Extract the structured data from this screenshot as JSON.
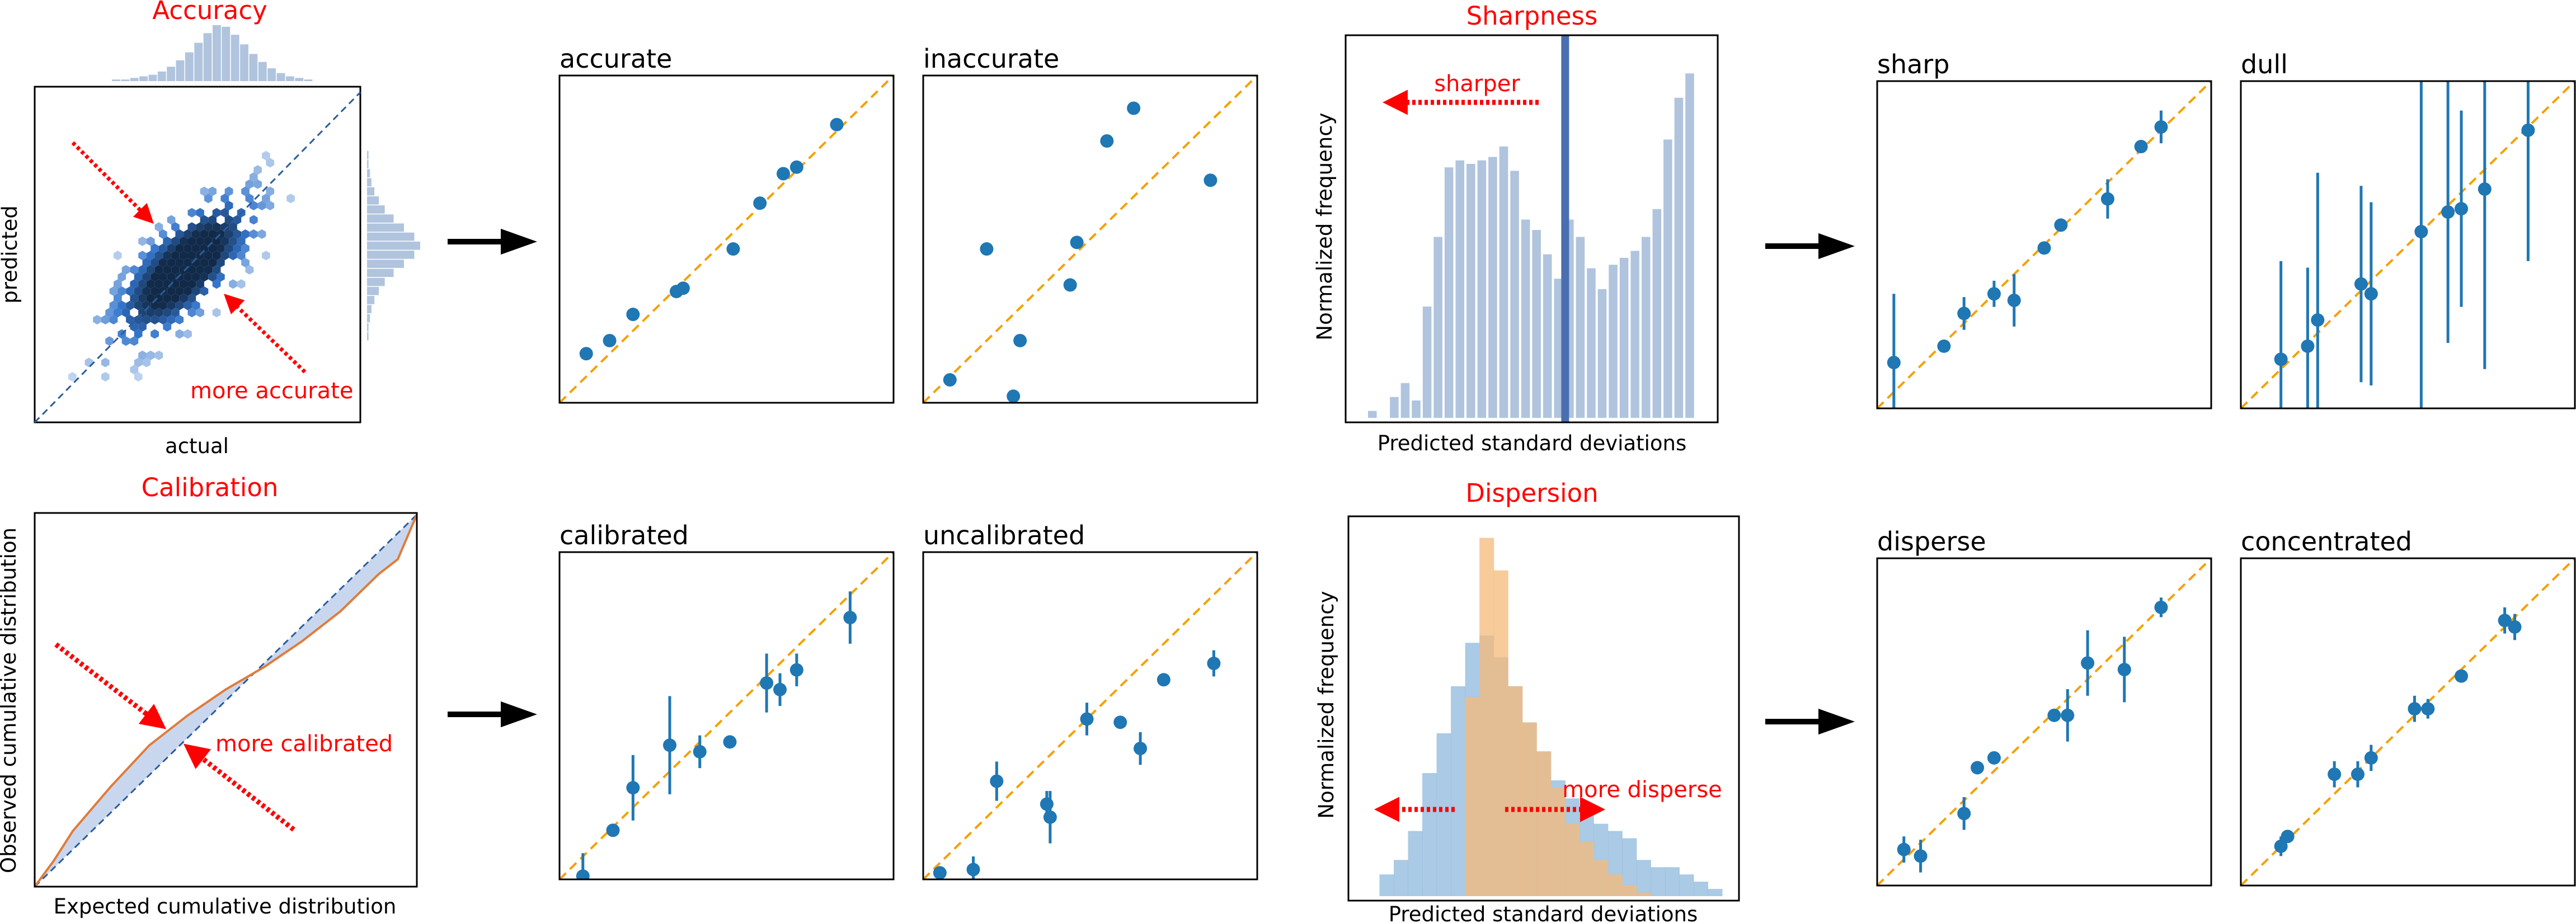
{
  "titles": {
    "accuracy": "Accuracy",
    "sharpness": "Sharpness",
    "calibration": "Calibration",
    "dispersion": "Dispersion"
  },
  "annotations": {
    "more_accurate": "more accurate",
    "sharper": "sharper",
    "more_calibrated": "more calibrated",
    "more_disperse": "more disperse"
  },
  "colors": {
    "highlight": "#ff0000",
    "point": "#1f77b4",
    "identity": "#f5a000",
    "hist": "#b0c4de",
    "hist_secondary": "#f5b97a",
    "hist_primary": "#8db8dc",
    "calib_curve": "#e07b39",
    "diag_blue": "#2b5d9c"
  },
  "chart_data": [
    {
      "id": "accuracy-hexbin",
      "type": "scatter",
      "title": "Accuracy",
      "xlabel": "actual",
      "ylabel": "predicted",
      "annotation": "more accurate",
      "density_note": "hexbin joint density concentrated along the identity line with marginal histograms",
      "marginal_x": [
        1,
        1,
        2,
        3,
        4,
        6,
        9,
        13,
        18,
        24,
        30,
        35,
        34,
        29,
        23,
        17,
        12,
        8,
        5,
        3,
        2,
        1
      ],
      "marginal_y": [
        1,
        1,
        2,
        3,
        5,
        8,
        12,
        18,
        25,
        32,
        36,
        32,
        25,
        18,
        12,
        8,
        5,
        3,
        2,
        1,
        1
      ]
    },
    {
      "id": "accurate",
      "type": "scatter",
      "title": "accurate",
      "x": [
        0.08,
        0.15,
        0.22,
        0.35,
        0.37,
        0.52,
        0.6,
        0.67,
        0.71,
        0.83
      ],
      "y": [
        0.15,
        0.19,
        0.27,
        0.34,
        0.35,
        0.47,
        0.61,
        0.7,
        0.72,
        0.85
      ]
    },
    {
      "id": "inaccurate",
      "type": "scatter",
      "title": "inaccurate",
      "x": [
        0.08,
        0.19,
        0.27,
        0.29,
        0.44,
        0.46,
        0.55,
        0.63,
        0.86
      ],
      "y": [
        0.07,
        0.47,
        0.02,
        0.19,
        0.36,
        0.49,
        0.8,
        0.9,
        0.68
      ]
    },
    {
      "id": "sharpness-hist",
      "type": "bar",
      "title": "Sharpness",
      "xlabel": "Predicted standard deviations",
      "ylabel": "Normalized frequency",
      "annotation": "sharper",
      "values": [
        0.02,
        0.0,
        0.06,
        0.1,
        0.05,
        0.32,
        0.52,
        0.72,
        0.74,
        0.73,
        0.74,
        0.75,
        0.78,
        0.71,
        0.57,
        0.54,
        0.47,
        0.4,
        0.57,
        0.52,
        0.43,
        0.37,
        0.44,
        0.46,
        0.48,
        0.52,
        0.6,
        0.8,
        0.92,
        0.99,
        0.0
      ],
      "mean_marker_fraction": 0.59
    },
    {
      "id": "sharp",
      "type": "scatter",
      "title": "sharp",
      "x": [
        0.05,
        0.2,
        0.26,
        0.35,
        0.41,
        0.5,
        0.55,
        0.69,
        0.79,
        0.85
      ],
      "y": [
        0.14,
        0.19,
        0.29,
        0.35,
        0.33,
        0.49,
        0.56,
        0.64,
        0.8,
        0.86
      ],
      "err": [
        0.21,
        0.0,
        0.05,
        0.04,
        0.08,
        0.0,
        0.02,
        0.06,
        0.0,
        0.05
      ]
    },
    {
      "id": "dull",
      "type": "scatter",
      "title": "dull",
      "x": [
        0.12,
        0.2,
        0.23,
        0.36,
        0.39,
        0.54,
        0.62,
        0.66,
        0.73,
        0.86
      ],
      "y": [
        0.15,
        0.19,
        0.27,
        0.38,
        0.35,
        0.54,
        0.6,
        0.61,
        0.67,
        0.85
      ],
      "err": [
        0.3,
        0.24,
        0.45,
        0.3,
        0.28,
        0.55,
        0.4,
        0.3,
        0.55,
        0.4
      ]
    },
    {
      "id": "calibration-curve",
      "type": "line",
      "title": "Calibration",
      "xlabel": "Expected cumulative distribution",
      "ylabel": "Observed cumulative distribution",
      "annotation": "more calibrated",
      "x": [
        0.0,
        0.05,
        0.1,
        0.2,
        0.3,
        0.4,
        0.5,
        0.6,
        0.7,
        0.8,
        0.9,
        0.95,
        1.0
      ],
      "y": [
        0.0,
        0.07,
        0.15,
        0.27,
        0.38,
        0.46,
        0.53,
        0.59,
        0.66,
        0.74,
        0.84,
        0.88,
        1.0
      ]
    },
    {
      "id": "calibrated",
      "type": "scatter",
      "title": "calibrated",
      "x": [
        0.07,
        0.16,
        0.22,
        0.33,
        0.42,
        0.51,
        0.62,
        0.66,
        0.71,
        0.87
      ],
      "y": [
        0.01,
        0.15,
        0.28,
        0.41,
        0.39,
        0.42,
        0.6,
        0.58,
        0.64,
        0.8
      ],
      "err": [
        0.07,
        0.02,
        0.1,
        0.15,
        0.05,
        0.02,
        0.09,
        0.05,
        0.05,
        0.08
      ]
    },
    {
      "id": "uncalibrated",
      "type": "scatter",
      "title": "uncalibrated",
      "x": [
        0.05,
        0.15,
        0.22,
        0.37,
        0.38,
        0.49,
        0.59,
        0.65,
        0.72,
        0.87
      ],
      "y": [
        0.02,
        0.03,
        0.3,
        0.23,
        0.19,
        0.49,
        0.48,
        0.4,
        0.61,
        0.66
      ],
      "err": [
        0.0,
        0.04,
        0.06,
        0.04,
        0.08,
        0.05,
        0.0,
        0.05,
        0.0,
        0.04
      ]
    },
    {
      "id": "dispersion-hist",
      "type": "bar",
      "title": "Dispersion",
      "xlabel": "Predicted standard deviations",
      "ylabel": "Normalized frequency",
      "annotation": "more disperse",
      "series": [
        {
          "values": [
            0.0,
            0.06,
            0.1,
            0.18,
            0.34,
            0.45,
            0.58,
            0.7,
            0.72,
            0.66,
            0.58,
            0.48,
            0.4,
            0.32,
            0.27,
            0.25,
            0.2,
            0.18,
            0.16,
            0.1,
            0.08,
            0.08,
            0.06,
            0.04,
            0.02
          ]
        },
        {
          "values": [
            0.0,
            0.0,
            0.0,
            0.0,
            0.0,
            0.0,
            0.0,
            0.55,
            0.99,
            0.9,
            0.58,
            0.48,
            0.4,
            0.3,
            0.2,
            0.15,
            0.1,
            0.06,
            0.03,
            0.01,
            0.0,
            0.0,
            0.0,
            0.0,
            0.0
          ]
        }
      ]
    },
    {
      "id": "disperse",
      "type": "scatter",
      "title": "disperse",
      "x": [
        0.08,
        0.13,
        0.26,
        0.3,
        0.35,
        0.53,
        0.57,
        0.63,
        0.74,
        0.85
      ],
      "y": [
        0.11,
        0.09,
        0.22,
        0.36,
        0.39,
        0.52,
        0.52,
        0.68,
        0.66,
        0.85
      ],
      "err": [
        0.04,
        0.05,
        0.05,
        0.02,
        0.02,
        0.0,
        0.08,
        0.1,
        0.1,
        0.03
      ]
    },
    {
      "id": "concentrated",
      "type": "scatter",
      "title": "concentrated",
      "x": [
        0.12,
        0.14,
        0.28,
        0.35,
        0.39,
        0.52,
        0.56,
        0.66,
        0.79,
        0.82
      ],
      "y": [
        0.12,
        0.15,
        0.34,
        0.34,
        0.39,
        0.54,
        0.54,
        0.64,
        0.81,
        0.79
      ],
      "err": [
        0.03,
        0.02,
        0.04,
        0.04,
        0.04,
        0.04,
        0.03,
        0.02,
        0.04,
        0.04
      ]
    }
  ]
}
